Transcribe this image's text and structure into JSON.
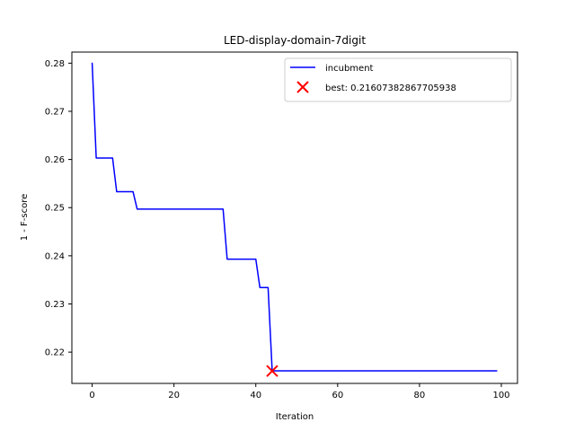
{
  "chart_data": {
    "type": "line",
    "title": "LED-display-domain-7digit",
    "xlabel": "Iteration",
    "ylabel": "1 - F-score",
    "xlim": [
      -4.95,
      103.95
    ],
    "ylim": [
      0.2135,
      0.2823
    ],
    "xticks": [
      0,
      20,
      40,
      60,
      80,
      100
    ],
    "yticks": [
      0.22,
      0.23,
      0.24,
      0.25,
      0.26,
      0.27,
      0.28
    ],
    "xtick_labels": [
      "0",
      "20",
      "40",
      "60",
      "80",
      "100"
    ],
    "ytick_labels": [
      "0.22",
      "0.23",
      "0.24",
      "0.25",
      "0.26",
      "0.27",
      "0.28"
    ],
    "grid": false,
    "legend_position": "top-right",
    "series": [
      {
        "name": "incubment",
        "color": "#0000ff",
        "style": "steps",
        "points": [
          [
            0,
            0.2801
          ],
          [
            1,
            0.2603
          ],
          [
            5,
            0.2603
          ],
          [
            6,
            0.2533
          ],
          [
            10,
            0.2533
          ],
          [
            11,
            0.2497
          ],
          [
            32,
            0.2497
          ],
          [
            33,
            0.2393
          ],
          [
            40,
            0.2393
          ],
          [
            41,
            0.2334
          ],
          [
            43,
            0.2334
          ],
          [
            44,
            0.2161
          ],
          [
            99,
            0.2161
          ]
        ]
      }
    ],
    "best": {
      "label": "best: 0.21607382867705938",
      "x": 44,
      "y": 0.21607382867705938,
      "color": "#ff0000",
      "marker": "x"
    }
  }
}
